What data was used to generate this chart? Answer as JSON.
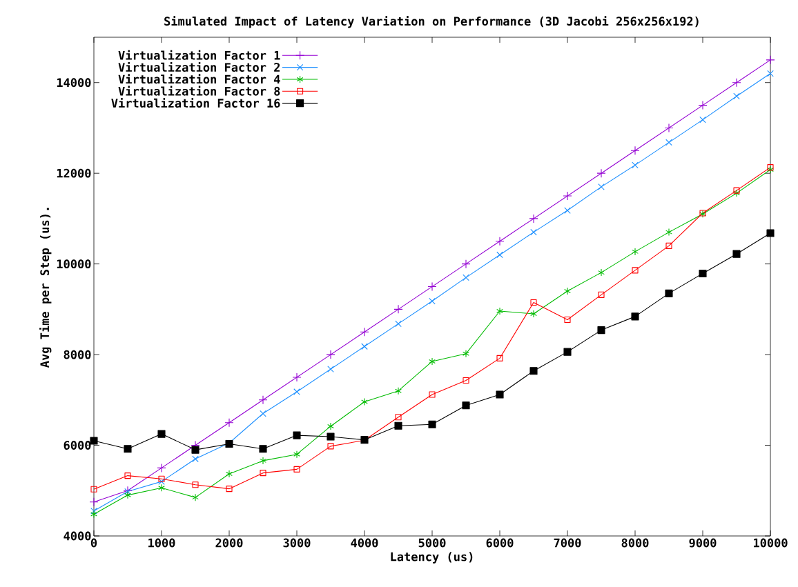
{
  "chart_data": {
    "type": "line",
    "title": "Simulated Impact of Latency Variation on Performance (3D Jacobi 256x256x192)",
    "xlabel": "Latency (us)",
    "ylabel": "Avg Time per Step (us).",
    "x": [
      0,
      500,
      1000,
      1500,
      2000,
      2500,
      3000,
      3500,
      4000,
      4500,
      5000,
      5500,
      6000,
      6500,
      7000,
      7500,
      8000,
      8500,
      9000,
      9500,
      10000
    ],
    "series": [
      {
        "name": "Virtualization Factor 1",
        "color": "#9400d3",
        "marker": "plus",
        "values": [
          4750,
          5000,
          5500,
          6000,
          6500,
          7000,
          7500,
          8000,
          8500,
          9000,
          9500,
          10000,
          10500,
          11000,
          11500,
          12000,
          12500,
          13000,
          13500,
          14000,
          14500
        ]
      },
      {
        "name": "Virtualization Factor 2",
        "color": "#1e90ff",
        "marker": "x",
        "values": [
          4550,
          4980,
          5200,
          5700,
          6050,
          6700,
          7180,
          7680,
          8180,
          8680,
          9180,
          9700,
          10200,
          10700,
          11180,
          11700,
          12180,
          12680,
          13180,
          13700,
          14200
        ]
      },
      {
        "name": "Virtualization Factor 4",
        "color": "#00bb00",
        "marker": "cross",
        "values": [
          4480,
          4900,
          5060,
          4850,
          5370,
          5660,
          5800,
          6420,
          6960,
          7200,
          7850,
          8020,
          8960,
          8900,
          9400,
          9810,
          10270,
          10700,
          11100,
          11560,
          12080
        ]
      },
      {
        "name": "Virtualization Factor 8",
        "color": "#ff0000",
        "marker": "square",
        "values": [
          5030,
          5330,
          5260,
          5130,
          5040,
          5390,
          5470,
          5980,
          6110,
          6620,
          7120,
          7430,
          7920,
          9150,
          8770,
          9320,
          9860,
          10400,
          11120,
          11620,
          12130
        ]
      },
      {
        "name": "Virtualization Factor 16",
        "color": "#000000",
        "marker": "square_filled",
        "values": [
          6100,
          5920,
          6250,
          5900,
          6030,
          5920,
          6220,
          6190,
          6120,
          6430,
          6460,
          6880,
          7120,
          7640,
          8060,
          8540,
          8840,
          9350,
          9790,
          10220,
          10680
        ]
      }
    ],
    "xlim": [
      0,
      10000
    ],
    "ylim": [
      4000,
      15000
    ],
    "xticks": [
      0,
      1000,
      2000,
      3000,
      4000,
      5000,
      6000,
      7000,
      8000,
      9000,
      10000
    ],
    "yticks": [
      4000,
      6000,
      8000,
      10000,
      12000,
      14000
    ],
    "grid": false,
    "legend": "top left"
  }
}
